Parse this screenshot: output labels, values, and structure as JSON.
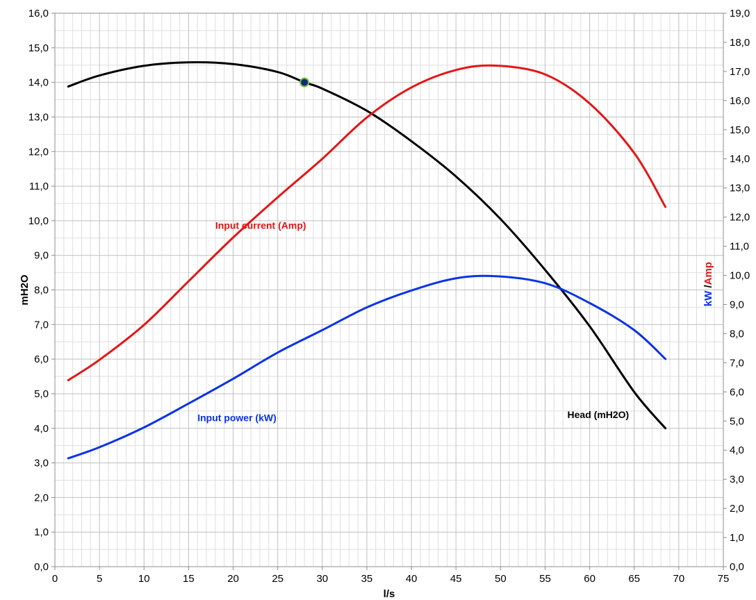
{
  "chart_data": {
    "type": "line",
    "xlabel": "l/s",
    "ylabel": "mH2O",
    "y2label_parts": [
      {
        "text": "kW",
        "color": "#0a33e6"
      },
      {
        "text": " /",
        "color": "#000000"
      },
      {
        "text": "Amp",
        "color": "#e61414"
      }
    ],
    "xlim": [
      0,
      75
    ],
    "ylim": [
      0,
      16
    ],
    "y2lim": [
      0,
      19
    ],
    "x_ticks": [
      0,
      5,
      10,
      15,
      20,
      25,
      30,
      35,
      40,
      45,
      50,
      55,
      60,
      65,
      70,
      75
    ],
    "y_ticks": [
      "0,0",
      "1,0",
      "2,0",
      "3,0",
      "4,0",
      "5,0",
      "6,0",
      "7,0",
      "8,0",
      "9,0",
      "10,0",
      "11,0",
      "12,0",
      "13,0",
      "14,0",
      "15,0",
      "16,0"
    ],
    "y2_ticks": [
      "0,0",
      "1,0",
      "2,0",
      "3,0",
      "4,0",
      "5,0",
      "6,0",
      "7,0",
      "8,0",
      "9,0",
      "10,0",
      "11,0",
      "12,0",
      "13,0",
      "14,0",
      "15,0",
      "16,0",
      "17,0",
      "18,0",
      "19,0"
    ],
    "grid": true,
    "series": [
      {
        "name": "Head (mH2O)",
        "axis": "left",
        "color": "#000000",
        "x": [
          1.5,
          5,
          10,
          15,
          20,
          25,
          28,
          30,
          35,
          40,
          45,
          50,
          55,
          60,
          65,
          68.5
        ],
        "y": [
          13.88,
          14.2,
          14.48,
          14.58,
          14.53,
          14.3,
          14.0,
          13.82,
          13.18,
          12.3,
          11.28,
          10.05,
          8.58,
          6.95,
          5.05,
          4.0
        ]
      },
      {
        "name": "Input current (Amp)",
        "axis": "right",
        "color": "#e61414",
        "x": [
          1.5,
          5,
          10,
          15,
          20,
          25,
          30,
          35,
          40,
          45,
          49.5,
          55,
          60,
          65,
          68.5
        ],
        "y": [
          6.4,
          7.1,
          8.3,
          9.8,
          11.3,
          12.68,
          14.0,
          15.42,
          16.45,
          17.05,
          17.2,
          16.9,
          15.9,
          14.2,
          12.35
        ]
      },
      {
        "name": "Input power (kW)",
        "axis": "right",
        "color": "#0a33e6",
        "x": [
          1.5,
          5,
          10,
          15,
          20,
          25,
          30,
          35,
          40,
          45,
          49.5,
          55,
          60,
          65,
          68.5
        ],
        "y": [
          3.72,
          4.1,
          4.78,
          5.6,
          6.45,
          7.35,
          8.12,
          8.9,
          9.48,
          9.9,
          9.97,
          9.73,
          9.05,
          8.12,
          7.13
        ]
      }
    ],
    "marker": {
      "x": 28,
      "y": 14.0,
      "color": "#0d2b7a",
      "ring": "#7ac143"
    },
    "annotations": [
      {
        "text": "Input current (Amp)",
        "x": 18,
        "y2": 11.6,
        "color": "#e61414"
      },
      {
        "text": "Input  power (kW)",
        "x": 16,
        "y2": 5.0,
        "color": "#0a33e6"
      },
      {
        "text": "Head (mH2O)",
        "x": 57.5,
        "y2": 5.1,
        "color": "#000000"
      }
    ]
  }
}
